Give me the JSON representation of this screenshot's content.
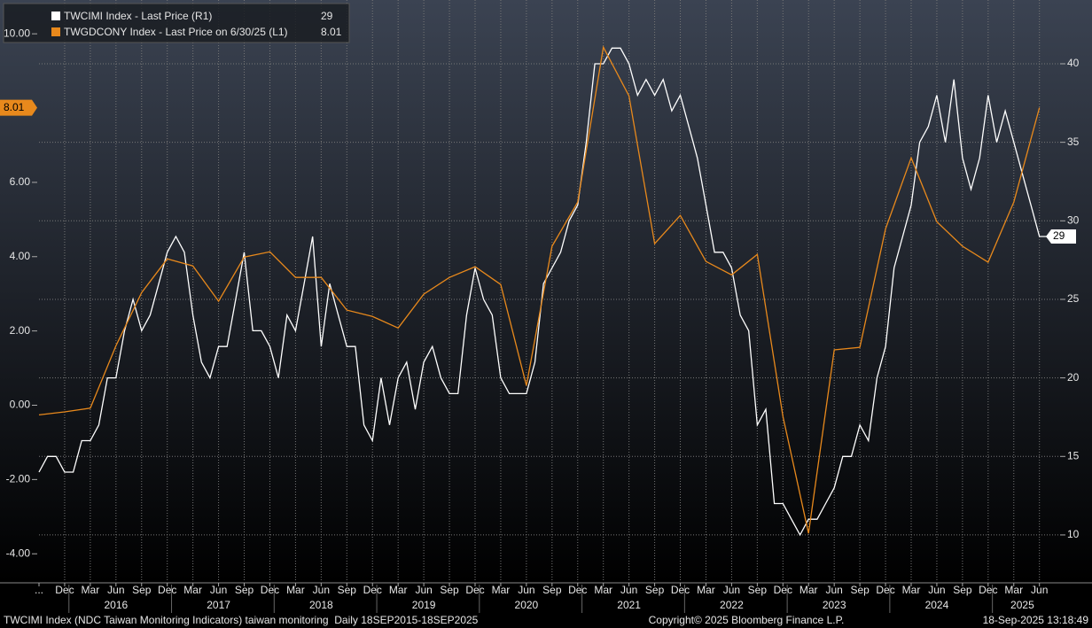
{
  "chart_data": {
    "type": "line",
    "xlim": [
      "2015-09",
      "2025-08"
    ],
    "ylim": [
      -4.71,
      10.91
    ],
    "yticks": [
      {
        "value": 10,
        "label": "10.00"
      },
      {
        "value": 6,
        "label": "6.00"
      },
      {
        "value": 4,
        "label": "4.00"
      },
      {
        "value": 2,
        "label": "2.00"
      },
      {
        "value": 0,
        "label": "0.00"
      },
      {
        "value": -2,
        "label": "-2.00"
      },
      {
        "value": -4,
        "label": "-4.00"
      }
    ],
    "y2lim": [
      7.12,
      44.06
    ],
    "y2ticks": [
      40,
      35,
      30,
      25,
      20,
      15,
      10
    ],
    "grid": true,
    "xticks": [
      {
        "value": "2015-09",
        "label": "..."
      },
      {
        "value": "2015-12",
        "label": "Dec"
      },
      {
        "value": "2016-03",
        "label": "Mar"
      },
      {
        "value": "2016-06",
        "label": "Jun"
      },
      {
        "value": "2016-09",
        "label": "Sep"
      },
      {
        "value": "2016-12",
        "label": "Dec"
      },
      {
        "value": "2017-03",
        "label": "Mar"
      },
      {
        "value": "2017-06",
        "label": "Jun"
      },
      {
        "value": "2017-09",
        "label": "Sep"
      },
      {
        "value": "2017-12",
        "label": "Dec"
      },
      {
        "value": "2018-03",
        "label": "Mar"
      },
      {
        "value": "2018-06",
        "label": "Jun"
      },
      {
        "value": "2018-09",
        "label": "Sep"
      },
      {
        "value": "2018-12",
        "label": "Dec"
      },
      {
        "value": "2019-03",
        "label": "Mar"
      },
      {
        "value": "2019-06",
        "label": "Jun"
      },
      {
        "value": "2019-09",
        "label": "Sep"
      },
      {
        "value": "2019-12",
        "label": "Dec"
      },
      {
        "value": "2020-03",
        "label": "Mar"
      },
      {
        "value": "2020-06",
        "label": "Jun"
      },
      {
        "value": "2020-09",
        "label": "Sep"
      },
      {
        "value": "2020-12",
        "label": "Dec"
      },
      {
        "value": "2021-03",
        "label": "Mar"
      },
      {
        "value": "2021-06",
        "label": "Jun"
      },
      {
        "value": "2021-09",
        "label": "Sep"
      },
      {
        "value": "2021-12",
        "label": "Dec"
      },
      {
        "value": "2022-03",
        "label": "Mar"
      },
      {
        "value": "2022-06",
        "label": "Jun"
      },
      {
        "value": "2022-09",
        "label": "Sep"
      },
      {
        "value": "2022-12",
        "label": "Dec"
      },
      {
        "value": "2023-03",
        "label": "Mar"
      },
      {
        "value": "2023-06",
        "label": "Jun"
      },
      {
        "value": "2023-09",
        "label": "Sep"
      },
      {
        "value": "2023-12",
        "label": "Dec"
      },
      {
        "value": "2024-03",
        "label": "Mar"
      },
      {
        "value": "2024-06",
        "label": "Jun"
      },
      {
        "value": "2024-09",
        "label": "Sep"
      },
      {
        "value": "2024-12",
        "label": "Dec"
      },
      {
        "value": "2025-03",
        "label": "Mar"
      },
      {
        "value": "2025-06",
        "label": "Jun"
      }
    ],
    "xyears": [
      {
        "value": "2016-06",
        "label": "2016"
      },
      {
        "value": "2017-06",
        "label": "2017"
      },
      {
        "value": "2018-06",
        "label": "2018"
      },
      {
        "value": "2019-06",
        "label": "2019"
      },
      {
        "value": "2020-06",
        "label": "2020"
      },
      {
        "value": "2021-06",
        "label": "2021"
      },
      {
        "value": "2022-06",
        "label": "2022"
      },
      {
        "value": "2023-06",
        "label": "2023"
      },
      {
        "value": "2024-06",
        "label": "2024"
      },
      {
        "value": "2025-04",
        "label": "2025"
      }
    ],
    "series": [
      {
        "name": "TWCIMI Index - Last Price (R1)",
        "color": "#ffffff",
        "axis": "y2",
        "x": [
          "2015-09",
          "2015-10",
          "2015-11",
          "2015-12",
          "2016-01",
          "2016-02",
          "2016-03",
          "2016-04",
          "2016-05",
          "2016-06",
          "2016-07",
          "2016-08",
          "2016-09",
          "2016-10",
          "2016-11",
          "2016-12",
          "2017-01",
          "2017-02",
          "2017-03",
          "2017-04",
          "2017-05",
          "2017-06",
          "2017-07",
          "2017-08",
          "2017-09",
          "2017-10",
          "2017-11",
          "2017-12",
          "2018-01",
          "2018-02",
          "2018-03",
          "2018-04",
          "2018-05",
          "2018-06",
          "2018-07",
          "2018-08",
          "2018-09",
          "2018-10",
          "2018-11",
          "2018-12",
          "2019-01",
          "2019-02",
          "2019-03",
          "2019-04",
          "2019-05",
          "2019-06",
          "2019-07",
          "2019-08",
          "2019-09",
          "2019-10",
          "2019-11",
          "2019-12",
          "2020-01",
          "2020-02",
          "2020-03",
          "2020-04",
          "2020-05",
          "2020-06",
          "2020-07",
          "2020-08",
          "2020-09",
          "2020-10",
          "2020-11",
          "2020-12",
          "2021-01",
          "2021-02",
          "2021-03",
          "2021-04",
          "2021-05",
          "2021-06",
          "2021-07",
          "2021-08",
          "2021-09",
          "2021-10",
          "2021-11",
          "2021-12",
          "2022-01",
          "2022-02",
          "2022-03",
          "2022-04",
          "2022-05",
          "2022-06",
          "2022-07",
          "2022-08",
          "2022-09",
          "2022-10",
          "2022-11",
          "2022-12",
          "2023-01",
          "2023-02",
          "2023-03",
          "2023-04",
          "2023-05",
          "2023-06",
          "2023-07",
          "2023-08",
          "2023-09",
          "2023-10",
          "2023-11",
          "2023-12",
          "2024-01",
          "2024-02",
          "2024-03",
          "2024-04",
          "2024-05",
          "2024-06",
          "2024-07",
          "2024-08",
          "2024-09",
          "2024-10",
          "2024-11",
          "2024-12",
          "2025-01",
          "2025-02",
          "2025-03",
          "2025-04",
          "2025-05",
          "2025-06",
          "2025-07"
        ],
        "values": [
          14,
          15,
          15,
          14,
          14,
          16,
          16,
          17,
          20,
          20,
          23,
          25,
          23,
          24,
          26,
          28,
          29,
          28,
          24,
          21,
          20,
          22,
          22,
          25,
          28,
          23,
          23,
          22,
          20,
          24,
          23,
          26,
          29,
          22,
          26,
          24,
          22,
          22,
          17,
          16,
          20,
          17,
          20,
          21,
          18,
          21,
          22,
          20,
          19,
          19,
          24,
          27,
          25,
          24,
          20,
          19,
          19,
          19,
          21,
          26,
          27,
          28,
          30,
          31,
          35,
          40,
          40,
          41,
          41,
          40,
          38,
          39,
          38,
          39,
          37,
          38,
          36,
          34,
          31,
          28,
          28,
          27,
          24,
          23,
          17,
          18,
          12,
          12,
          11,
          10,
          11,
          11,
          12,
          13,
          15,
          15,
          17,
          16,
          20,
          22,
          27,
          29,
          31,
          35,
          36,
          38,
          35,
          39,
          34,
          32,
          34,
          38,
          35,
          37,
          35,
          33,
          31,
          29,
          29
        ]
      },
      {
        "name": "TWGDCONY Index - Last Price on 6/30/25 (L1)",
        "color": "#e8891c",
        "x": [
          "2015-09",
          "2015-12",
          "2016-03",
          "2016-06",
          "2016-09",
          "2016-12",
          "2017-03",
          "2017-06",
          "2017-09",
          "2017-12",
          "2018-03",
          "2018-06",
          "2018-09",
          "2018-12",
          "2019-03",
          "2019-06",
          "2019-09",
          "2019-12",
          "2020-03",
          "2020-06",
          "2020-09",
          "2020-12",
          "2021-03",
          "2021-06",
          "2021-09",
          "2021-12",
          "2022-03",
          "2022-06",
          "2022-09",
          "2022-12",
          "2023-03",
          "2023-06",
          "2023-09",
          "2023-12",
          "2024-03",
          "2024-06",
          "2024-09",
          "2024-12",
          "2025-03",
          "2025-06"
        ],
        "values": [
          -0.26,
          -0.18,
          -0.08,
          1.6,
          3.03,
          3.94,
          3.75,
          2.8,
          3.99,
          4.13,
          3.44,
          3.44,
          2.56,
          2.39,
          2.08,
          2.99,
          3.44,
          3.73,
          3.25,
          0.53,
          4.28,
          5.47,
          9.64,
          8.33,
          4.35,
          5.11,
          3.87,
          3.51,
          4.06,
          -0.3,
          -3.45,
          1.49,
          1.56,
          4.75,
          6.66,
          4.94,
          4.28,
          3.85,
          5.47,
          8.01
        ]
      }
    ]
  },
  "footer": {
    "source": "TWCIMI Index (NDC Taiwan Monitoring Indicators) taiwan monitoring  Daily 18SEP2015-18SEP2025",
    "copyright": "Copyright© 2025 Bloomberg Finance L.P.",
    "timestamp": "18-Sep-2025 13:18:49"
  }
}
